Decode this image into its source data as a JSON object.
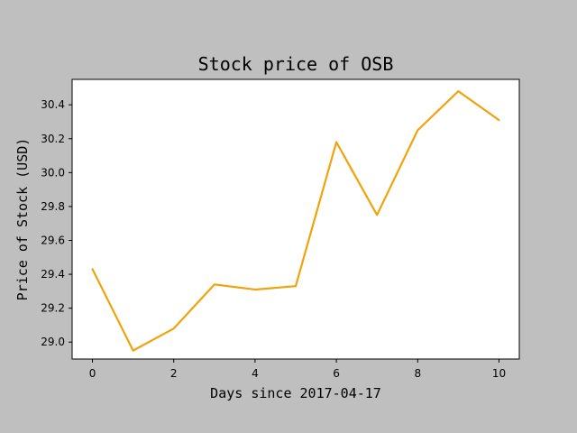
{
  "chart_data": {
    "type": "line",
    "title": "Stock price of OSB",
    "xlabel": "Days since 2017-04-17",
    "ylabel": "Price of Stock (USD)",
    "x": [
      0,
      1,
      2,
      3,
      4,
      5,
      6,
      7,
      8,
      9,
      10
    ],
    "series": [
      {
        "color": "#f0a30a",
        "values": [
          29.43,
          28.95,
          29.08,
          29.34,
          29.31,
          29.33,
          30.18,
          29.75,
          30.25,
          30.48,
          30.31
        ]
      }
    ],
    "xlim": [
      -0.5,
      10.5
    ],
    "ylim": [
      28.9,
      30.55
    ],
    "xticks": [
      0,
      2,
      4,
      6,
      8,
      10
    ],
    "yticks": [
      "29.0",
      "29.2",
      "29.4",
      "29.6",
      "29.8",
      "30.0",
      "30.2",
      "30.4"
    ],
    "grid": false
  }
}
